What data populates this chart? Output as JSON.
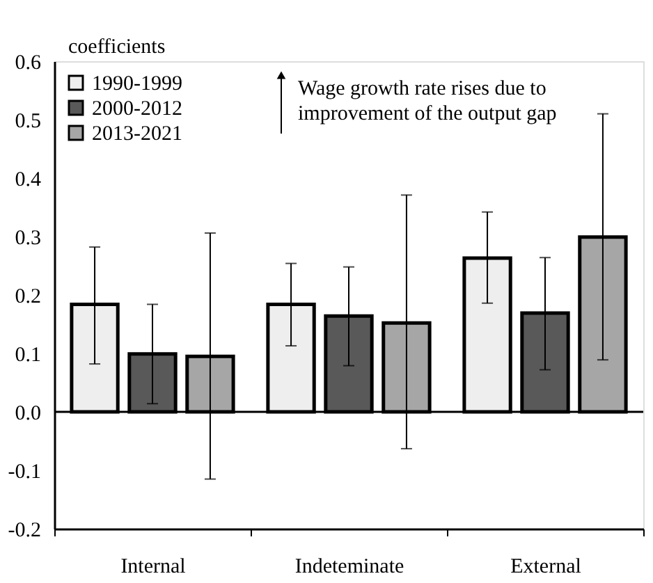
{
  "chart_data": {
    "type": "bar",
    "ylabel": "coefficients",
    "categories": [
      "Internal",
      "Indeteminate",
      "External"
    ],
    "series": [
      {
        "name": "1990-1999",
        "color": "#eeeeee",
        "values": [
          0.184,
          0.184,
          0.263
        ],
        "errors": [
          [
            0.082,
            0.282
          ],
          [
            0.113,
            0.254
          ],
          [
            0.186,
            0.342
          ]
        ]
      },
      {
        "name": "2000-2012",
        "color": "#595959",
        "values": [
          0.099,
          0.164,
          0.169
        ],
        "errors": [
          [
            0.014,
            0.184
          ],
          [
            0.079,
            0.248
          ],
          [
            0.072,
            0.264
          ]
        ]
      },
      {
        "name": "2013-2021",
        "color": "#a6a6a6",
        "values": [
          0.095,
          0.152,
          0.299
        ],
        "errors": [
          [
            -0.115,
            0.306
          ],
          [
            -0.063,
            0.371
          ],
          [
            0.089,
            0.51
          ]
        ]
      }
    ],
    "ylim": [
      -0.2,
      0.6
    ],
    "yticks": [
      {
        "value": -0.2,
        "label": "-0.2"
      },
      {
        "value": -0.1,
        "label": "-0.1"
      },
      {
        "value": 0,
        "label": "0.0"
      },
      {
        "value": 0.1,
        "label": "0.1"
      },
      {
        "value": 0.2,
        "label": "0.2"
      },
      {
        "value": 0.3,
        "label": "0.3"
      },
      {
        "value": 0.4,
        "label": "0.4"
      },
      {
        "value": 0.5,
        "label": "0.5"
      },
      {
        "value": 0.6,
        "label": "0.6"
      }
    ],
    "ref_lines": [
      {
        "axis": "y",
        "value": 0
      }
    ],
    "annotations": [
      "Wage growth rate rises due to\nimprovement of the output gap"
    ],
    "legend": "top left",
    "grid": false
  }
}
